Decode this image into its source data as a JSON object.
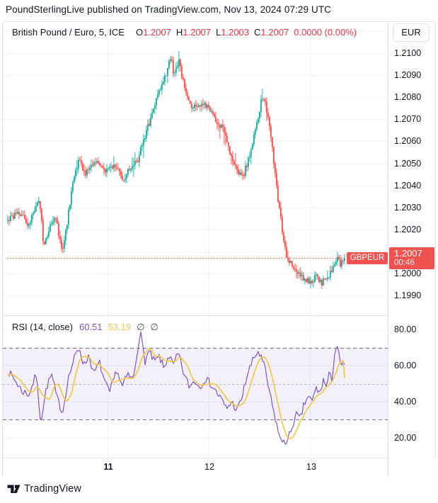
{
  "header": {
    "title": "PoundSterlingLive published on TradingView.com, Nov 13, 2024 07:29 UTC"
  },
  "chart": {
    "legend": {
      "symbol": "British Pound / Euro, 5, ICE",
      "o_label": "O",
      "o": "1.2007",
      "h_label": "H",
      "h": "1.2007",
      "l_label": "L",
      "l": "1.2003",
      "c_label": "C",
      "c": "1.2007",
      "change": "0.0000 (0.00%)"
    },
    "currency_button": "EUR",
    "price_scale": [
      "1.2100",
      "1.2090",
      "1.2080",
      "1.2070",
      "1.2060",
      "1.2050",
      "1.2040",
      "1.2030",
      "1.2020",
      "1.2010",
      "1.2000",
      "1.1990"
    ],
    "price_label": {
      "symbol_label": "GBPEUR",
      "price": "1.2007",
      "countdown": "00:46"
    },
    "time_axis": [
      {
        "label": "11"
      },
      {
        "label": "12"
      },
      {
        "label": "13"
      }
    ]
  },
  "rsi": {
    "legend_title": "RSI (14, close)",
    "value": "60.51",
    "ma_value": "53.19",
    "empty1": "∅",
    "empty2": "∅",
    "scale": [
      "80.00",
      "60.00",
      "40.00",
      "20.00"
    ]
  },
  "footer": {
    "brand": "TradingView"
  },
  "chart_data": {
    "type": "candlestick",
    "title": "British Pound / Euro, 5, ICE",
    "symbol": "GBPEUR",
    "interval_minutes": 5,
    "legend_position": "top-left",
    "grid": true,
    "x_axis": {
      "labels": [
        "11",
        "12",
        "13"
      ],
      "positions_t": [
        0.299,
        0.598,
        0.899
      ]
    },
    "panes": [
      {
        "type": "candlestick",
        "name": "price",
        "last_bar": {
          "open": 1.2007,
          "high": 1.2007,
          "low": 1.2003,
          "close": 1.2007,
          "change": 0.0,
          "change_pct": 0.0
        },
        "current_price": 1.2007,
        "y_axis": {
          "min": 1.1981,
          "max": 1.21142,
          "ticks": [
            1.21,
            1.209,
            1.208,
            1.207,
            1.206,
            1.205,
            1.204,
            1.203,
            1.202,
            1.201,
            1.2,
            1.199
          ]
        },
        "colors": {
          "up": "#26a69a",
          "down": "#ef5350",
          "price_line": "#ef5350",
          "grid": "#f0f3fa"
        },
        "price_path_keypoints": [
          [
            0,
            1.2024
          ],
          [
            0.031,
            1.2028
          ],
          [
            0.063,
            1.2022
          ],
          [
            0.084,
            1.203
          ],
          [
            0.094,
            1.2034
          ],
          [
            0.105,
            1.2016
          ],
          [
            0.111,
            1.2013
          ],
          [
            0.126,
            1.2022
          ],
          [
            0.142,
            1.2026
          ],
          [
            0.157,
            1.2013
          ],
          [
            0.163,
            1.201
          ],
          [
            0.178,
            1.2025
          ],
          [
            0.195,
            1.2043
          ],
          [
            0.211,
            1.2052
          ],
          [
            0.23,
            1.2045
          ],
          [
            0.261,
            1.205
          ],
          [
            0.293,
            1.2047
          ],
          [
            0.324,
            1.2049
          ],
          [
            0.341,
            1.2042
          ],
          [
            0.366,
            1.2048
          ],
          [
            0.387,
            1.2052
          ],
          [
            0.408,
            1.2063
          ],
          [
            0.429,
            1.2072
          ],
          [
            0.443,
            1.208
          ],
          [
            0.46,
            1.2087
          ],
          [
            0.477,
            1.2094
          ],
          [
            0.485,
            1.21
          ],
          [
            0.494,
            1.2089
          ],
          [
            0.502,
            1.2093
          ],
          [
            0.508,
            1.2096
          ],
          [
            0.519,
            1.2088
          ],
          [
            0.533,
            1.208
          ],
          [
            0.548,
            1.2076
          ],
          [
            0.575,
            1.2077
          ],
          [
            0.596,
            1.2075
          ],
          [
            0.617,
            1.207
          ],
          [
            0.638,
            1.2066
          ],
          [
            0.659,
            1.2055
          ],
          [
            0.68,
            1.2047
          ],
          [
            0.699,
            1.2044
          ],
          [
            0.715,
            1.2052
          ],
          [
            0.732,
            1.2063
          ],
          [
            0.747,
            1.2073
          ],
          [
            0.755,
            1.208
          ],
          [
            0.766,
            1.2076
          ],
          [
            0.776,
            1.2068
          ],
          [
            0.787,
            1.2055
          ],
          [
            0.797,
            1.204
          ],
          [
            0.808,
            1.2028
          ],
          [
            0.818,
            1.2016
          ],
          [
            0.828,
            1.2008
          ],
          [
            0.841,
            1.2004
          ],
          [
            0.858,
            1.2
          ],
          [
            0.879,
            1.1997
          ],
          [
            0.9,
            1.1996
          ],
          [
            0.92,
            1.1999
          ],
          [
            0.931,
            1.1995
          ],
          [
            0.946,
            1.1998
          ],
          [
            0.958,
            1.2
          ],
          [
            0.971,
            1.2005
          ],
          [
            0.979,
            1.2008
          ],
          [
            0.987,
            1.2004
          ],
          [
            1,
            1.2007
          ]
        ]
      },
      {
        "type": "line",
        "name": "RSI (14, close)",
        "value": 60.51,
        "ma_value": 53.19,
        "y_axis": {
          "min": 9.0,
          "max": 87.5,
          "ticks": [
            80,
            60,
            40,
            20
          ]
        },
        "bands": {
          "upper": 70,
          "middle": 50,
          "lower": 30
        },
        "colors": {
          "rsi": "#7e57c2",
          "ma": "#f2c84b",
          "band_fill": "rgba(126,87,194,0.09)",
          "band_line": "#6f7380",
          "mid_line": "#b6b9c3",
          "grid": "#f0f3fa"
        },
        "rsi_keypoints": [
          [
            0,
            57
          ],
          [
            0.021,
            52
          ],
          [
            0.042,
            46
          ],
          [
            0.063,
            44
          ],
          [
            0.084,
            55
          ],
          [
            0.098,
            29
          ],
          [
            0.115,
            48
          ],
          [
            0.13,
            55
          ],
          [
            0.146,
            42
          ],
          [
            0.163,
            34
          ],
          [
            0.178,
            52
          ],
          [
            0.199,
            65
          ],
          [
            0.213,
            70
          ],
          [
            0.226,
            60
          ],
          [
            0.241,
            66
          ],
          [
            0.255,
            55
          ],
          [
            0.272,
            62
          ],
          [
            0.289,
            50
          ],
          [
            0.303,
            45
          ],
          [
            0.324,
            58
          ],
          [
            0.339,
            48
          ],
          [
            0.356,
            55
          ],
          [
            0.372,
            52
          ],
          [
            0.393,
            79
          ],
          [
            0.408,
            62
          ],
          [
            0.418,
            68
          ],
          [
            0.435,
            62
          ],
          [
            0.45,
            65
          ],
          [
            0.464,
            58
          ],
          [
            0.477,
            66
          ],
          [
            0.492,
            60
          ],
          [
            0.506,
            67
          ],
          [
            0.523,
            55
          ],
          [
            0.54,
            48
          ],
          [
            0.554,
            52
          ],
          [
            0.569,
            48
          ],
          [
            0.586,
            53
          ],
          [
            0.602,
            50
          ],
          [
            0.617,
            46
          ],
          [
            0.632,
            42
          ],
          [
            0.649,
            36
          ],
          [
            0.665,
            40
          ],
          [
            0.68,
            35
          ],
          [
            0.695,
            42
          ],
          [
            0.711,
            55
          ],
          [
            0.728,
            63
          ],
          [
            0.743,
            68
          ],
          [
            0.753,
            64
          ],
          [
            0.764,
            58
          ],
          [
            0.774,
            48
          ],
          [
            0.785,
            38
          ],
          [
            0.795,
            30
          ],
          [
            0.805,
            22
          ],
          [
            0.812,
            17
          ],
          [
            0.82,
            20
          ],
          [
            0.828,
            16
          ],
          [
            0.837,
            22
          ],
          [
            0.847,
            28
          ],
          [
            0.858,
            33
          ],
          [
            0.868,
            30
          ],
          [
            0.879,
            38
          ],
          [
            0.891,
            43
          ],
          [
            0.904,
            40
          ],
          [
            0.916,
            48
          ],
          [
            0.925,
            44
          ],
          [
            0.937,
            52
          ],
          [
            0.946,
            48
          ],
          [
            0.954,
            55
          ],
          [
            0.962,
            52
          ],
          [
            0.971,
            68
          ],
          [
            0.979,
            71
          ],
          [
            0.987,
            60
          ],
          [
            1,
            60.51
          ]
        ]
      }
    ]
  }
}
